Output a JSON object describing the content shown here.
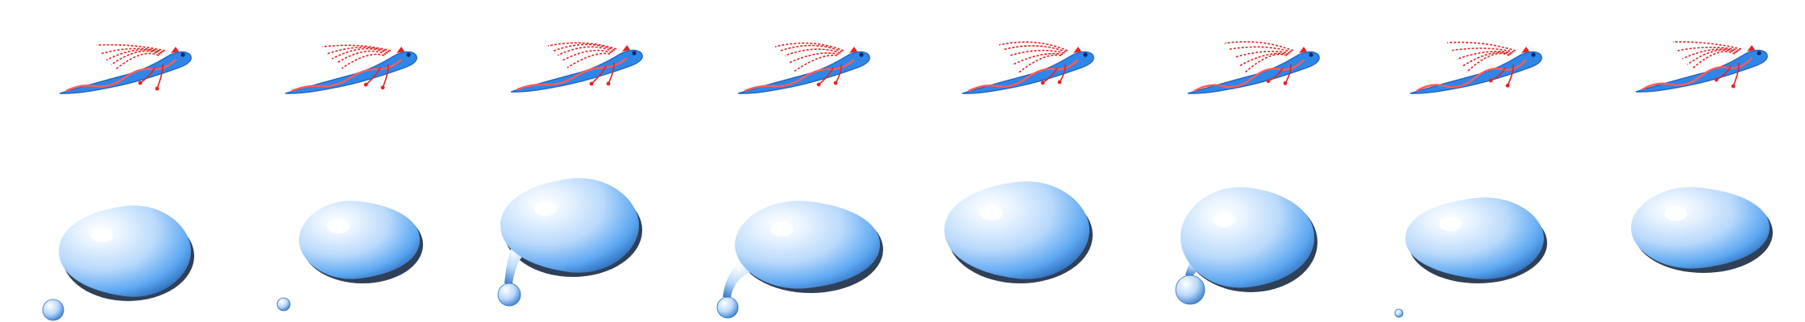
{
  "sprite_sheet": {
    "background": "#ffffff",
    "rows": [
      {
        "name": "oarfish-swim",
        "frames": 8,
        "colors": {
          "body": "#2f86e6",
          "body_dark": "#1d5fbf",
          "fin": "#ff5a5a",
          "tentacle": "#e52222",
          "eye": "#0d2a66"
        }
      },
      {
        "name": "water-blob",
        "frames": 8,
        "colors": {
          "light": "#eaf4ff",
          "mid": "#b9d9fb",
          "base": "#5ea8f2",
          "dark": "#1f5fae",
          "shadow": "#0b1f3a"
        }
      }
    ]
  }
}
